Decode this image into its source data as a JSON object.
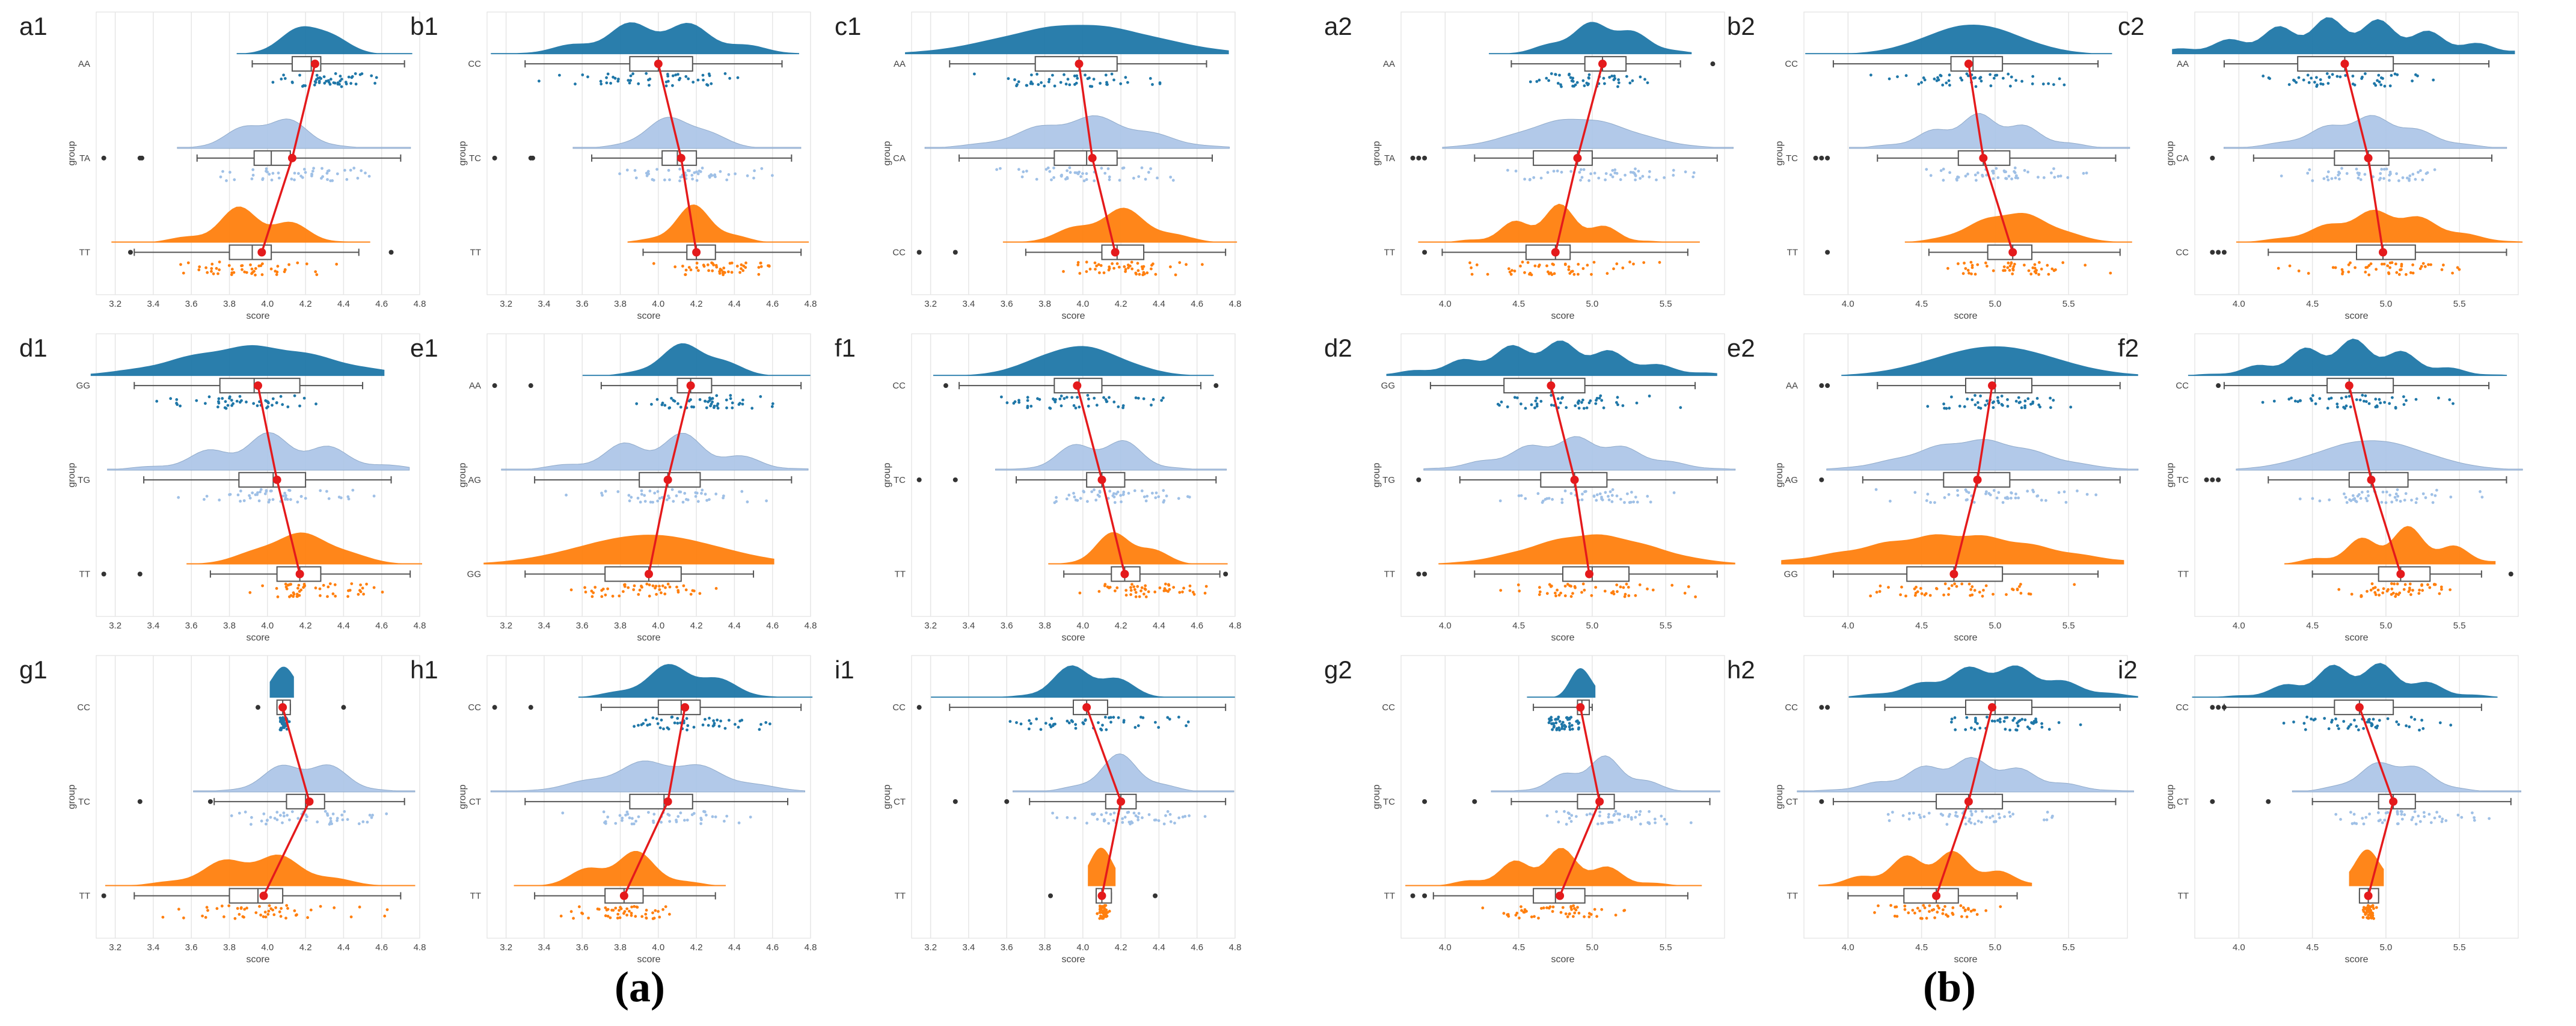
{
  "figure": {
    "label_a": "(a)",
    "label_b": "(b)",
    "colors": {
      "top": "#1f77a8",
      "mid": "#aec7e8",
      "bottom": "#ff7f0e",
      "mean_line": "#e41a1c",
      "box": "#555555",
      "grid": "#e6e6e6"
    }
  },
  "chart_data": [
    {
      "id": "a1",
      "type": "raincloud",
      "group": "a",
      "xlabel": "score",
      "ylabel": "group",
      "xlim": [
        3.1,
        4.8
      ],
      "xticks": [
        3.2,
        3.4,
        3.6,
        3.8,
        4.0,
        4.2,
        4.4,
        4.6,
        4.8
      ],
      "xtick_labels": [
        "3.2",
        "3.4",
        "3.6",
        "3.8",
        "4.0",
        "4.2",
        "4.4",
        "4.6",
        "4.8"
      ],
      "categories": [
        "AA",
        "TA",
        "TT"
      ],
      "box": [
        [
          4.13,
          4.23,
          4.28,
          3.92,
          4.72
        ],
        [
          3.93,
          4.02,
          4.12,
          3.63,
          4.7
        ],
        [
          3.8,
          3.92,
          4.02,
          3.3,
          4.48
        ]
      ],
      "means": [
        4.25,
        4.13,
        3.97
      ],
      "outliers": [
        [],
        [
          3.14,
          3.33,
          3.34
        ],
        [
          3.28,
          4.65
        ]
      ]
    },
    {
      "id": "b1",
      "type": "raincloud",
      "group": "a",
      "xlabel": "score",
      "ylabel": "group",
      "xlim": [
        3.1,
        4.8
      ],
      "xticks": [
        3.2,
        3.4,
        3.6,
        3.8,
        4.0,
        4.2,
        4.4,
        4.6,
        4.8
      ],
      "xtick_labels": [
        "3.2",
        "3.4",
        "3.6",
        "3.8",
        "4.0",
        "4.2",
        "4.4",
        "4.6",
        "4.8"
      ],
      "categories": [
        "CC",
        "TC",
        "TT"
      ],
      "box": [
        [
          3.85,
          4.0,
          4.18,
          3.3,
          4.65
        ],
        [
          4.02,
          4.1,
          4.2,
          3.65,
          4.7
        ],
        [
          4.15,
          4.2,
          4.3,
          3.92,
          4.75
        ]
      ],
      "means": [
        4.0,
        4.12,
        4.2
      ],
      "outliers": [
        [],
        [
          3.14,
          3.33,
          3.34
        ],
        []
      ]
    },
    {
      "id": "c1",
      "type": "raincloud",
      "group": "a",
      "xlabel": "score",
      "ylabel": "group",
      "xlim": [
        3.1,
        4.8
      ],
      "xticks": [
        3.2,
        3.4,
        3.6,
        3.8,
        4.0,
        4.2,
        4.4,
        4.6,
        4.8
      ],
      "xtick_labels": [
        "3.2",
        "3.4",
        "3.6",
        "3.8",
        "4.0",
        "4.2",
        "4.4",
        "4.6",
        "4.8"
      ],
      "categories": [
        "AA",
        "CA",
        "CC"
      ],
      "box": [
        [
          3.75,
          3.98,
          4.18,
          3.3,
          4.65
        ],
        [
          3.85,
          4.02,
          4.18,
          3.35,
          4.68
        ],
        [
          4.1,
          4.18,
          4.32,
          3.7,
          4.75
        ]
      ],
      "means": [
        3.98,
        4.05,
        4.17
      ],
      "outliers": [
        [],
        [],
        [
          3.14,
          3.33
        ]
      ]
    },
    {
      "id": "d1",
      "type": "raincloud",
      "group": "a",
      "xlabel": "score",
      "ylabel": "group",
      "xlim": [
        3.1,
        4.8
      ],
      "xticks": [
        3.2,
        3.4,
        3.6,
        3.8,
        4.0,
        4.2,
        4.4,
        4.6,
        4.8
      ],
      "xtick_labels": [
        "3.2",
        "3.4",
        "3.6",
        "3.8",
        "4.0",
        "4.2",
        "4.4",
        "4.6",
        "4.8"
      ],
      "categories": [
        "GG",
        "TG",
        "TT"
      ],
      "box": [
        [
          3.75,
          3.93,
          4.17,
          3.3,
          4.5
        ],
        [
          3.85,
          4.03,
          4.2,
          3.35,
          4.65
        ],
        [
          4.05,
          4.17,
          4.28,
          3.7,
          4.75
        ]
      ],
      "means": [
        3.95,
        4.05,
        4.17
      ],
      "outliers": [
        [],
        [],
        [
          3.14,
          3.33
        ]
      ]
    },
    {
      "id": "e1",
      "type": "raincloud",
      "group": "a",
      "xlabel": "score",
      "ylabel": "group",
      "xlim": [
        3.1,
        4.8
      ],
      "xticks": [
        3.2,
        3.4,
        3.6,
        3.8,
        4.0,
        4.2,
        4.4,
        4.6,
        4.8
      ],
      "xtick_labels": [
        "3.2",
        "3.4",
        "3.6",
        "3.8",
        "4.0",
        "4.2",
        "4.4",
        "4.6",
        "4.8"
      ],
      "categories": [
        "AA",
        "AG",
        "GG"
      ],
      "box": [
        [
          4.1,
          4.17,
          4.28,
          3.7,
          4.75
        ],
        [
          3.9,
          4.05,
          4.22,
          3.35,
          4.7
        ],
        [
          3.72,
          3.95,
          4.12,
          3.3,
          4.5
        ]
      ],
      "means": [
        4.17,
        4.05,
        3.95
      ],
      "outliers": [
        [
          3.14,
          3.33
        ],
        [],
        []
      ]
    },
    {
      "id": "f1",
      "type": "raincloud",
      "group": "a",
      "xlabel": "score",
      "ylabel": "group",
      "xlim": [
        3.1,
        4.8
      ],
      "xticks": [
        3.2,
        3.4,
        3.6,
        3.8,
        4.0,
        4.2,
        4.4,
        4.6,
        4.8
      ],
      "xtick_labels": [
        "3.2",
        "3.4",
        "3.6",
        "3.8",
        "4.0",
        "4.2",
        "4.4",
        "4.6",
        "4.8"
      ],
      "categories": [
        "CC",
        "TC",
        "TT"
      ],
      "box": [
        [
          3.85,
          3.98,
          4.1,
          3.35,
          4.62
        ],
        [
          4.02,
          4.1,
          4.22,
          3.65,
          4.7
        ],
        [
          4.15,
          4.22,
          4.3,
          3.9,
          4.72
        ]
      ],
      "means": [
        3.97,
        4.1,
        4.22
      ],
      "outliers": [
        [
          3.28,
          4.7
        ],
        [
          3.14,
          3.33
        ],
        [
          4.75
        ]
      ]
    },
    {
      "id": "g1",
      "type": "raincloud",
      "group": "a",
      "xlabel": "score",
      "ylabel": "group",
      "xlim": [
        3.1,
        4.8
      ],
      "xticks": [
        3.2,
        3.4,
        3.6,
        3.8,
        4.0,
        4.2,
        4.4,
        4.6,
        4.8
      ],
      "xtick_labels": [
        "3.2",
        "3.4",
        "3.6",
        "3.8",
        "4.0",
        "4.2",
        "4.4",
        "4.6",
        "4.8"
      ],
      "categories": [
        "CC",
        "TC",
        "TT"
      ],
      "box": [
        [
          4.05,
          4.08,
          4.12,
          4.05,
          4.12
        ],
        [
          4.1,
          4.2,
          4.3,
          3.72,
          4.72
        ],
        [
          3.8,
          3.95,
          4.08,
          3.3,
          4.7
        ]
      ],
      "means": [
        4.08,
        4.22,
        3.98
      ],
      "outliers": [
        [
          3.95,
          4.4
        ],
        [
          3.33,
          3.7
        ],
        [
          3.14
        ]
      ]
    },
    {
      "id": "h1",
      "type": "raincloud",
      "group": "a",
      "xlabel": "score",
      "ylabel": "group",
      "xlim": [
        3.1,
        4.8
      ],
      "xticks": [
        3.2,
        3.4,
        3.6,
        3.8,
        4.0,
        4.2,
        4.4,
        4.6,
        4.8
      ],
      "xtick_labels": [
        "3.2",
        "3.4",
        "3.6",
        "3.8",
        "4.0",
        "4.2",
        "4.4",
        "4.6",
        "4.8"
      ],
      "categories": [
        "CC",
        "CT",
        "TT"
      ],
      "box": [
        [
          4.0,
          4.12,
          4.22,
          3.7,
          4.75
        ],
        [
          3.85,
          4.03,
          4.18,
          3.3,
          4.68
        ],
        [
          3.72,
          3.82,
          3.92,
          3.35,
          4.3
        ]
      ],
      "means": [
        4.14,
        4.05,
        3.82
      ],
      "outliers": [
        [
          3.14,
          3.33
        ],
        [],
        []
      ]
    },
    {
      "id": "i1",
      "type": "raincloud",
      "group": "a",
      "xlabel": "score",
      "ylabel": "group",
      "xlim": [
        3.1,
        4.8
      ],
      "xticks": [
        3.2,
        3.4,
        3.6,
        3.8,
        4.0,
        4.2,
        4.4,
        4.6,
        4.8
      ],
      "xtick_labels": [
        "3.2",
        "3.4",
        "3.6",
        "3.8",
        "4.0",
        "4.2",
        "4.4",
        "4.6",
        "4.8"
      ],
      "categories": [
        "CC",
        "CT",
        "TT"
      ],
      "box": [
        [
          3.95,
          4.02,
          4.13,
          3.3,
          4.75
        ],
        [
          4.12,
          4.2,
          4.28,
          3.72,
          4.75
        ],
        [
          4.07,
          4.1,
          4.15,
          4.07,
          4.15
        ]
      ],
      "means": [
        4.02,
        4.2,
        4.1
      ],
      "outliers": [
        [
          3.14
        ],
        [
          3.33,
          3.6
        ],
        [
          3.83,
          4.38
        ]
      ]
    },
    {
      "id": "a2",
      "type": "raincloud",
      "group": "b",
      "xlabel": "score",
      "ylabel": "group",
      "xlim": [
        3.7,
        5.9
      ],
      "xticks": [
        4.0,
        4.5,
        5.0,
        5.5
      ],
      "xtick_labels": [
        "4.0",
        "4.5",
        "5.0",
        "5.5"
      ],
      "categories": [
        "AA",
        "TA",
        "TT"
      ],
      "box": [
        [
          4.95,
          5.07,
          5.23,
          4.45,
          5.6
        ],
        [
          4.6,
          4.9,
          5.0,
          4.2,
          5.85
        ],
        [
          4.55,
          4.75,
          4.85,
          3.98,
          5.65
        ]
      ],
      "means": [
        5.07,
        4.9,
        4.75
      ],
      "outliers": [
        [
          5.82
        ],
        [
          3.78,
          3.82,
          3.86
        ],
        [
          3.86
        ]
      ]
    },
    {
      "id": "b2",
      "type": "raincloud",
      "group": "b",
      "xlabel": "score",
      "ylabel": "group",
      "xlim": [
        3.7,
        5.9
      ],
      "xticks": [
        4.0,
        4.5,
        5.0,
        5.5
      ],
      "xtick_labels": [
        "4.0",
        "4.5",
        "5.0",
        "5.5"
      ],
      "categories": [
        "CC",
        "TC",
        "TT"
      ],
      "box": [
        [
          4.7,
          4.85,
          5.05,
          3.9,
          5.7
        ],
        [
          4.75,
          4.92,
          5.1,
          4.2,
          5.82
        ],
        [
          4.95,
          5.12,
          5.25,
          4.55,
          5.85
        ]
      ],
      "means": [
        4.82,
        4.92,
        5.12
      ],
      "outliers": [
        [],
        [
          3.78,
          3.82,
          3.86
        ],
        [
          3.86
        ]
      ]
    },
    {
      "id": "c2",
      "type": "raincloud",
      "group": "b",
      "xlabel": "score",
      "ylabel": "group",
      "xlim": [
        3.7,
        5.9
      ],
      "xticks": [
        4.0,
        4.5,
        5.0,
        5.5
      ],
      "xtick_labels": [
        "4.0",
        "4.5",
        "5.0",
        "5.5"
      ],
      "categories": [
        "AA",
        "CA",
        "CC"
      ],
      "box": [
        [
          4.4,
          4.72,
          5.05,
          3.9,
          5.7
        ],
        [
          4.65,
          4.88,
          5.02,
          4.1,
          5.72
        ],
        [
          4.8,
          4.98,
          5.2,
          4.2,
          5.82
        ]
      ],
      "means": [
        4.72,
        4.88,
        4.98
      ],
      "outliers": [
        [],
        [
          3.82
        ],
        [
          3.82,
          3.86,
          3.9
        ]
      ]
    },
    {
      "id": "d2",
      "type": "raincloud",
      "group": "b",
      "xlabel": "score",
      "ylabel": "group",
      "xlim": [
        3.7,
        5.9
      ],
      "xticks": [
        4.0,
        4.5,
        5.0,
        5.5
      ],
      "xtick_labels": [
        "4.0",
        "4.5",
        "5.0",
        "5.5"
      ],
      "categories": [
        "GG",
        "TG",
        "TT"
      ],
      "box": [
        [
          4.4,
          4.72,
          4.95,
          3.9,
          5.7
        ],
        [
          4.65,
          4.88,
          5.1,
          4.1,
          5.85
        ],
        [
          4.8,
          5.0,
          5.25,
          4.2,
          5.85
        ]
      ],
      "means": [
        4.72,
        4.88,
        4.98
      ],
      "outliers": [
        [],
        [
          3.82
        ],
        [
          3.82,
          3.86
        ]
      ]
    },
    {
      "id": "e2",
      "type": "raincloud",
      "group": "b",
      "xlabel": "score",
      "ylabel": "group",
      "xlim": [
        3.7,
        5.9
      ],
      "xticks": [
        4.0,
        4.5,
        5.0,
        5.5
      ],
      "xtick_labels": [
        "4.0",
        "4.5",
        "5.0",
        "5.5"
      ],
      "categories": [
        "AA",
        "AG",
        "GG"
      ],
      "box": [
        [
          4.8,
          5.0,
          5.25,
          4.2,
          5.85
        ],
        [
          4.65,
          4.88,
          5.1,
          4.1,
          5.85
        ],
        [
          4.4,
          4.72,
          5.05,
          3.9,
          5.7
        ]
      ],
      "means": [
        4.98,
        4.88,
        4.72
      ],
      "outliers": [
        [
          3.82,
          3.86
        ],
        [
          3.82
        ],
        []
      ]
    },
    {
      "id": "f2",
      "type": "raincloud",
      "group": "b",
      "xlabel": "score",
      "ylabel": "group",
      "xlim": [
        3.7,
        5.9
      ],
      "xticks": [
        4.0,
        4.5,
        5.0,
        5.5
      ],
      "xtick_labels": [
        "4.0",
        "4.5",
        "5.0",
        "5.5"
      ],
      "categories": [
        "CC",
        "TC",
        "TT"
      ],
      "box": [
        [
          4.6,
          4.75,
          5.05,
          3.9,
          5.7
        ],
        [
          4.75,
          4.9,
          5.15,
          4.2,
          5.82
        ],
        [
          4.95,
          5.1,
          5.3,
          4.5,
          5.65
        ]
      ],
      "means": [
        4.75,
        4.9,
        5.1
      ],
      "outliers": [
        [
          3.86
        ],
        [
          3.78,
          3.82,
          3.86
        ],
        [
          5.85
        ]
      ]
    },
    {
      "id": "g2",
      "type": "raincloud",
      "group": "b",
      "xlabel": "score",
      "ylabel": "group",
      "xlim": [
        3.7,
        5.9
      ],
      "xticks": [
        4.0,
        4.5,
        5.0,
        5.5
      ],
      "xtick_labels": [
        "4.0",
        "4.5",
        "5.0",
        "5.5"
      ],
      "categories": [
        "CC",
        "TC",
        "TT"
      ],
      "box": [
        [
          4.9,
          4.93,
          4.98,
          4.6,
          5.0
        ],
        [
          4.9,
          5.05,
          5.15,
          4.45,
          5.8
        ],
        [
          4.6,
          4.75,
          4.95,
          3.92,
          5.65
        ]
      ],
      "means": [
        4.92,
        5.05,
        4.78
      ],
      "outliers": [
        [],
        [
          3.86,
          4.2
        ],
        [
          3.78,
          3.86
        ]
      ]
    },
    {
      "id": "h2",
      "type": "raincloud",
      "group": "b",
      "xlabel": "score",
      "ylabel": "group",
      "xlim": [
        3.7,
        5.9
      ],
      "xticks": [
        4.0,
        4.5,
        5.0,
        5.5
      ],
      "xtick_labels": [
        "4.0",
        "4.5",
        "5.0",
        "5.5"
      ],
      "categories": [
        "CC",
        "CT",
        "TT"
      ],
      "box": [
        [
          4.8,
          5.0,
          5.25,
          4.25,
          5.85
        ],
        [
          4.6,
          4.82,
          5.05,
          3.9,
          5.82
        ],
        [
          4.38,
          4.6,
          4.75,
          4.0,
          5.15
        ]
      ],
      "means": [
        4.98,
        4.82,
        4.6
      ],
      "outliers": [
        [
          3.82,
          3.86
        ],
        [
          3.82
        ],
        []
      ]
    },
    {
      "id": "i2",
      "type": "raincloud",
      "group": "b",
      "xlabel": "score",
      "ylabel": "group",
      "xlim": [
        3.7,
        5.9
      ],
      "xticks": [
        4.0,
        4.5,
        5.0,
        5.5
      ],
      "xtick_labels": [
        "4.0",
        "4.5",
        "5.0",
        "5.5"
      ],
      "categories": [
        "CC",
        "CT",
        "TT"
      ],
      "box": [
        [
          4.65,
          4.82,
          5.05,
          3.9,
          5.65
        ],
        [
          4.95,
          5.05,
          5.2,
          4.5,
          5.85
        ],
        [
          4.82,
          4.88,
          4.95,
          4.82,
          4.95
        ]
      ],
      "means": [
        4.82,
        5.05,
        4.88
      ],
      "outliers": [
        [
          3.82,
          3.86,
          3.9
        ],
        [
          3.82,
          4.2
        ],
        []
      ]
    }
  ]
}
